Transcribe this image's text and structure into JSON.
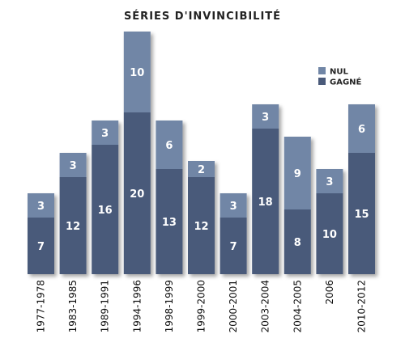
{
  "chart_data": {
    "type": "bar",
    "stacked": true,
    "title": "SÉRIES D'INVINCIBILITÉ",
    "categories": [
      "1977-1978",
      "1983-1985",
      "1989-1991",
      "1994-1996",
      "1998-1999",
      "1999-2000",
      "2000-2001",
      "2003-2004",
      "2004-2005",
      "2006",
      "2010-2012"
    ],
    "series": [
      {
        "name": "GAGNÉ",
        "color": "#4a5a7a",
        "values": [
          7,
          12,
          16,
          20,
          13,
          12,
          7,
          18,
          8,
          10,
          15
        ]
      },
      {
        "name": "NUL",
        "color": "#7186a6",
        "values": [
          3,
          3,
          3,
          10,
          6,
          2,
          3,
          3,
          9,
          3,
          6
        ]
      }
    ],
    "ylim": [
      0,
      30
    ],
    "grid": false,
    "legend_position": "top-right",
    "legend_order": [
      "NUL",
      "GAGNÉ"
    ]
  }
}
